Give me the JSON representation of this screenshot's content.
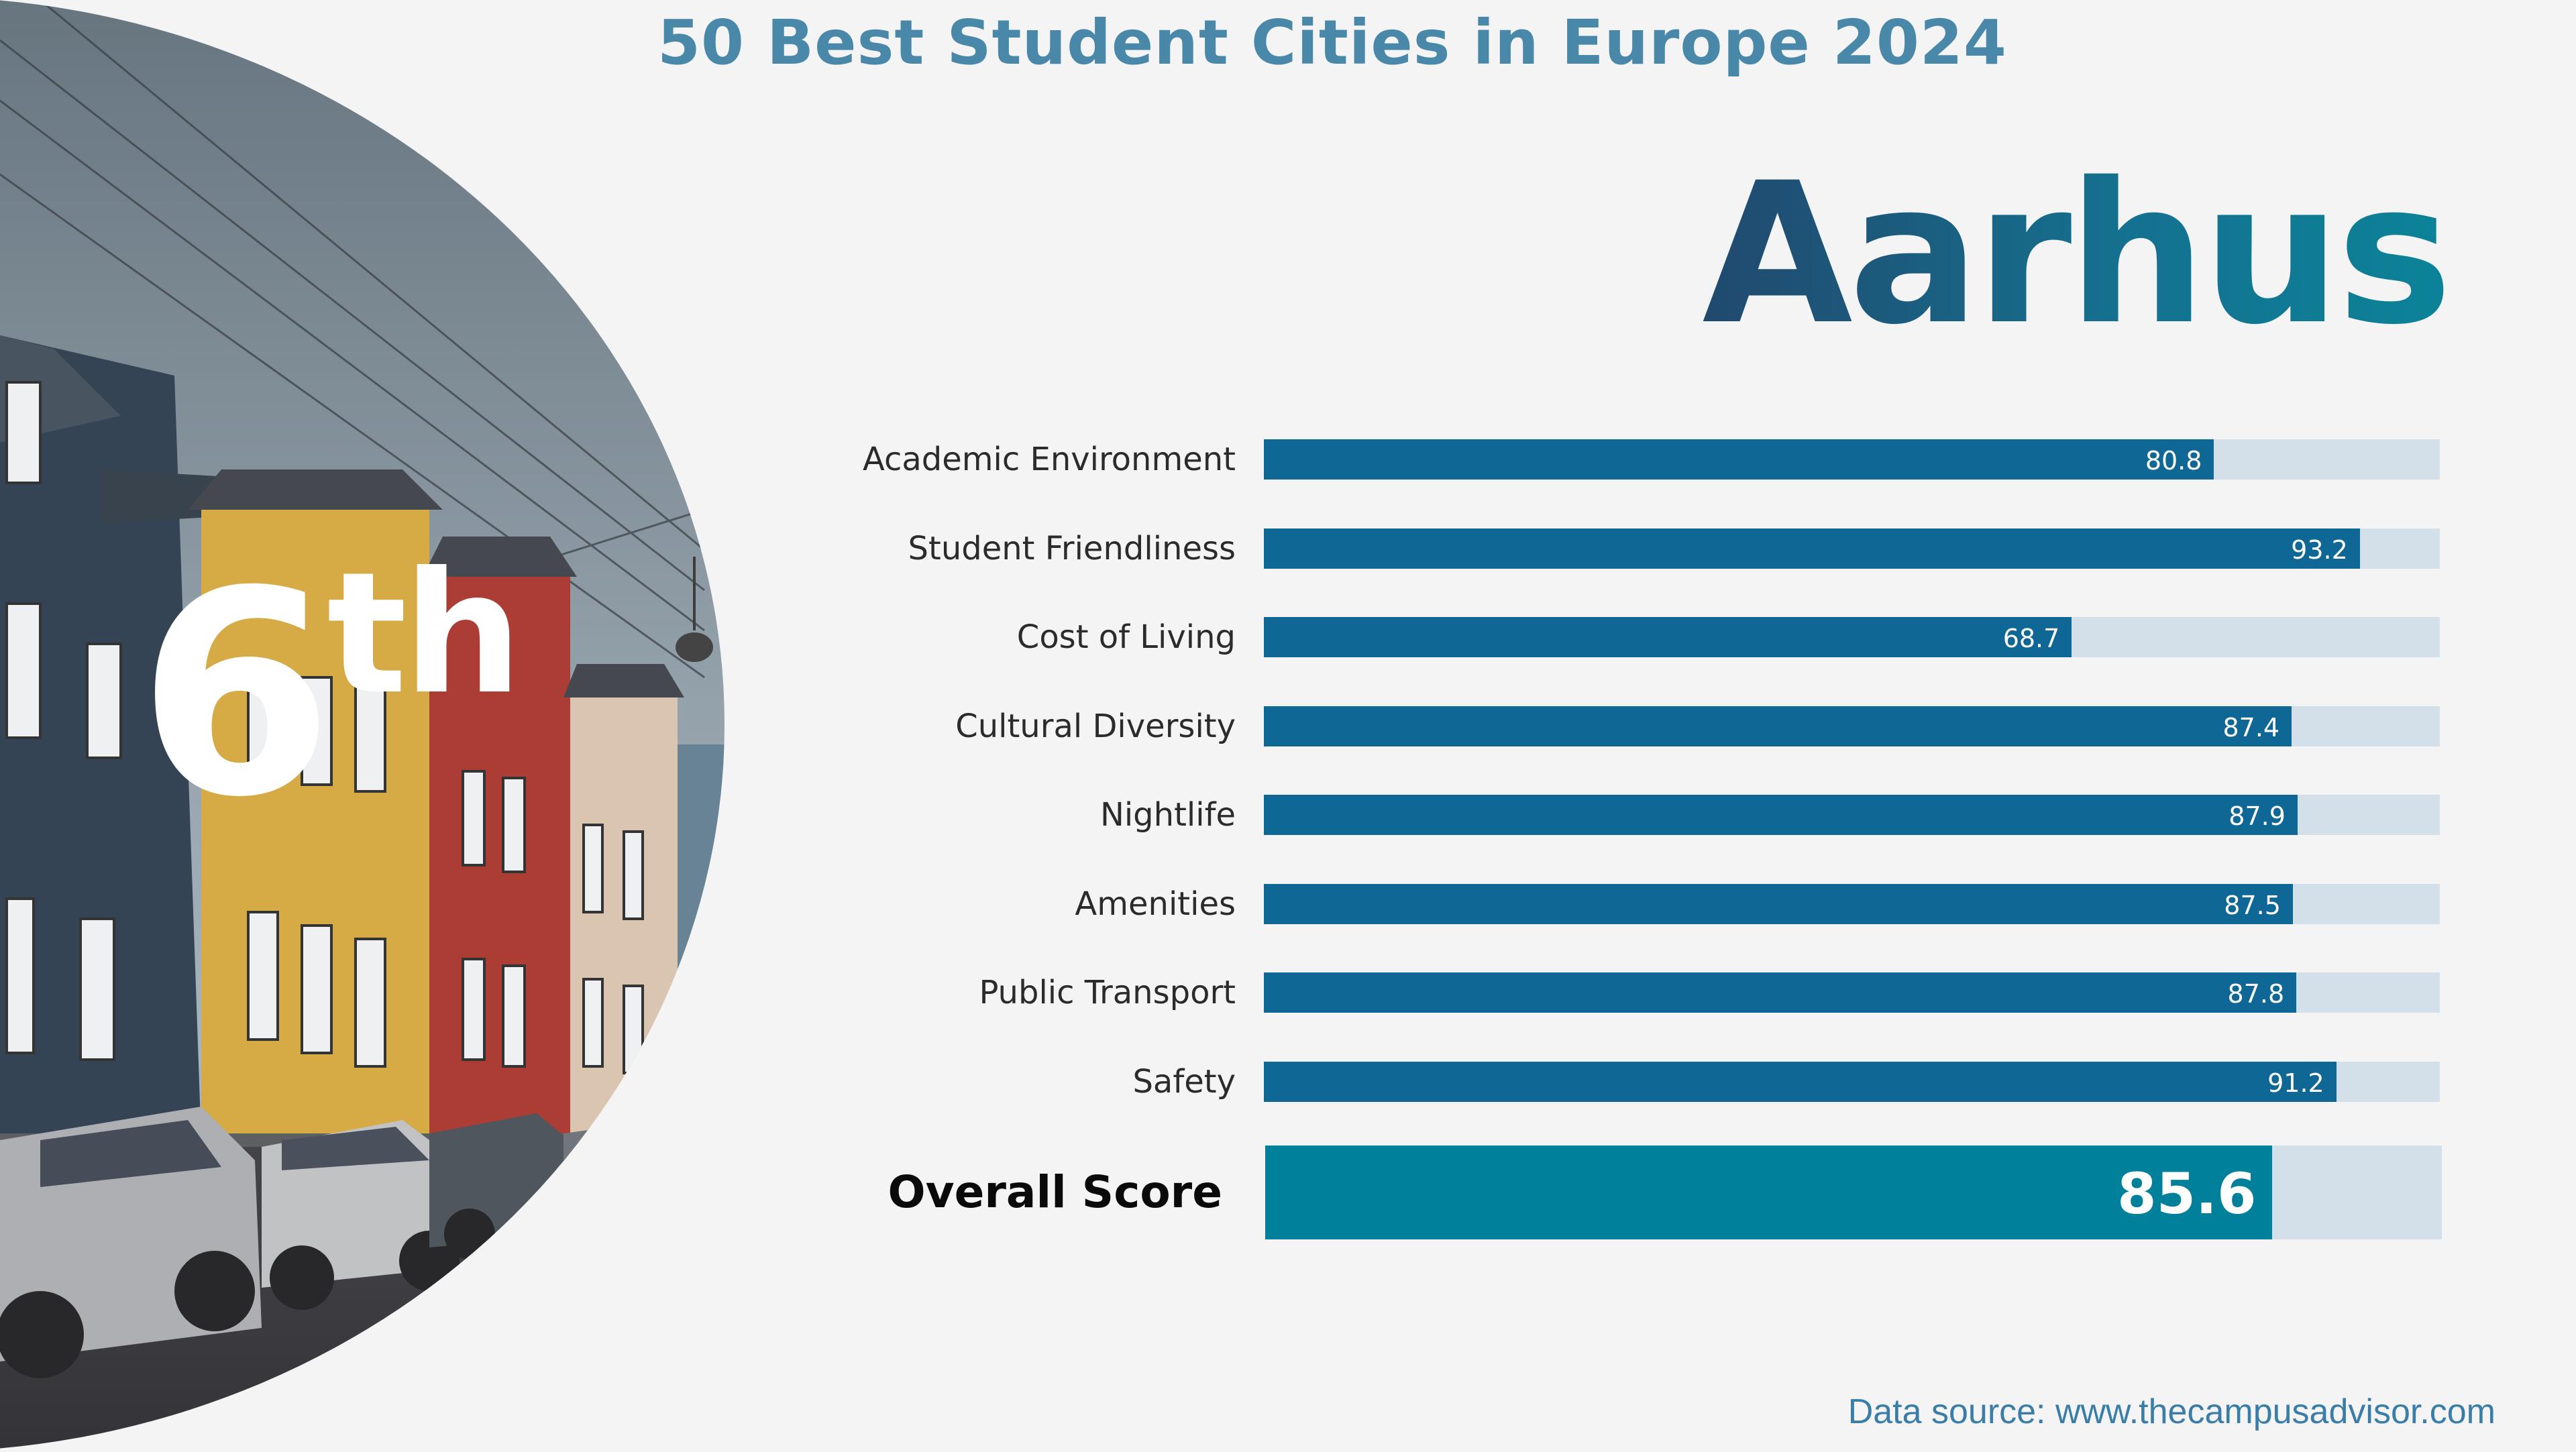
{
  "header": {
    "title": "50 Best Student Cities in Europe 2024"
  },
  "city": {
    "name": "Aarhus",
    "rank_number": "6",
    "rank_suffix": "th"
  },
  "overall": {
    "label": "Overall Score",
    "value": 85.6,
    "value_text": "85.6"
  },
  "footer": {
    "source": "Data source: www.thecampusadvisor.com"
  },
  "colors": {
    "title": "#4a88aa",
    "bar_fill": "#0f6796",
    "bar_track": "#d3e0e9",
    "overall_fill": "#00809b",
    "city_gradient_start": "#21496e",
    "city_gradient_end": "#0b8398",
    "background": "#f4f4f4"
  },
  "chart_data": {
    "type": "bar",
    "orientation": "horizontal",
    "categories": [
      "Academic Environment",
      "Student Friendliness",
      "Cost of Living",
      "Cultural Diversity",
      "Nightlife",
      "Amenities",
      "Public Transport",
      "Safety"
    ],
    "values": [
      80.8,
      93.2,
      68.7,
      87.4,
      87.9,
      87.5,
      87.8,
      91.2
    ],
    "value_labels": [
      "80.8",
      "93.2",
      "68.7",
      "87.4",
      "87.9",
      "87.5",
      "87.8",
      "91.2"
    ],
    "xlim": [
      0,
      100
    ],
    "grid": false,
    "legend": "none"
  }
}
